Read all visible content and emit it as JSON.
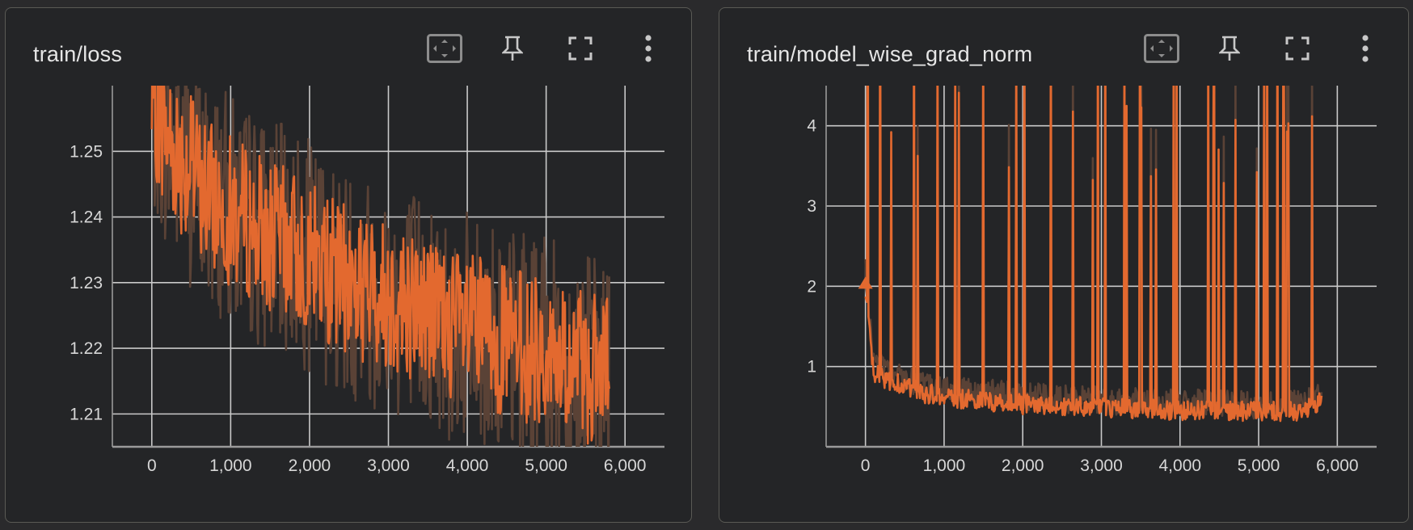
{
  "panels": [
    {
      "title": "train/loss",
      "toolbar": [
        "fit-domain-icon",
        "pin-icon",
        "fullscreen-icon",
        "more-vert-icon"
      ]
    },
    {
      "title": "train/model_wise_grad_norm",
      "toolbar": [
        "fit-domain-icon",
        "pin-icon",
        "fullscreen-icon",
        "more-vert-icon"
      ]
    }
  ],
  "colors": {
    "smoothed": "#e3692f",
    "raw": "#5a4236",
    "grid": "#c9c9c9",
    "card_bg": "#242527",
    "border": "#5a5a55"
  },
  "chart_data": [
    {
      "type": "line",
      "title": "",
      "xlabel": "",
      "ylabel": "",
      "xlim": [
        -500,
        6500
      ],
      "ylim": [
        1.205,
        1.26
      ],
      "x_ticks": [
        0,
        1000,
        2000,
        3000,
        4000,
        5000,
        6000
      ],
      "x_tick_labels": [
        "0",
        "1,000",
        "2,000",
        "3,000",
        "4,000",
        "5,000",
        "6,000"
      ],
      "y_ticks": [
        1.21,
        1.22,
        1.23,
        1.24,
        1.25
      ],
      "y_tick_labels": [
        "1.21",
        "1.22",
        "1.23",
        "1.24",
        "1.25"
      ],
      "grid": true,
      "series": [
        {
          "x": [
            0,
            250,
            500,
            750,
            1000,
            1250,
            1500,
            1750,
            2000,
            2250,
            2500,
            2750,
            3000,
            3250,
            3500,
            3750,
            4000,
            4250,
            4500,
            4750,
            5000,
            5250,
            5500,
            5800
          ],
          "values": [
            1.258,
            1.251,
            1.247,
            1.243,
            1.241,
            1.239,
            1.237,
            1.236,
            1.234,
            1.232,
            1.23,
            1.229,
            1.228,
            1.227,
            1.226,
            1.224,
            1.223,
            1.222,
            1.221,
            1.22,
            1.219,
            1.218,
            1.217,
            1.216
          ]
        }
      ]
    },
    {
      "type": "line",
      "title": "",
      "xlabel": "",
      "ylabel": "",
      "xlim": [
        -500,
        6500
      ],
      "ylim": [
        0,
        4.5
      ],
      "x_ticks": [
        0,
        1000,
        2000,
        3000,
        4000,
        5000,
        6000
      ],
      "x_tick_labels": [
        "0",
        "1,000",
        "2,000",
        "3,000",
        "4,000",
        "5,000",
        "6,000"
      ],
      "y_ticks": [
        1,
        2,
        3,
        4
      ],
      "y_tick_labels": [
        "1",
        "2",
        "3",
        "4"
      ],
      "grid": true,
      "series": [
        {
          "x": [
            0,
            100,
            250,
            500,
            750,
            1000,
            1500,
            2000,
            2500,
            3000,
            3500,
            4000,
            4500,
            5000,
            5500,
            5800
          ],
          "values": [
            2.0,
            0.9,
            0.8,
            0.7,
            0.6,
            0.55,
            0.5,
            0.45,
            0.42,
            0.4,
            0.38,
            0.37,
            0.36,
            0.35,
            0.35,
            0.5
          ]
        }
      ]
    }
  ]
}
